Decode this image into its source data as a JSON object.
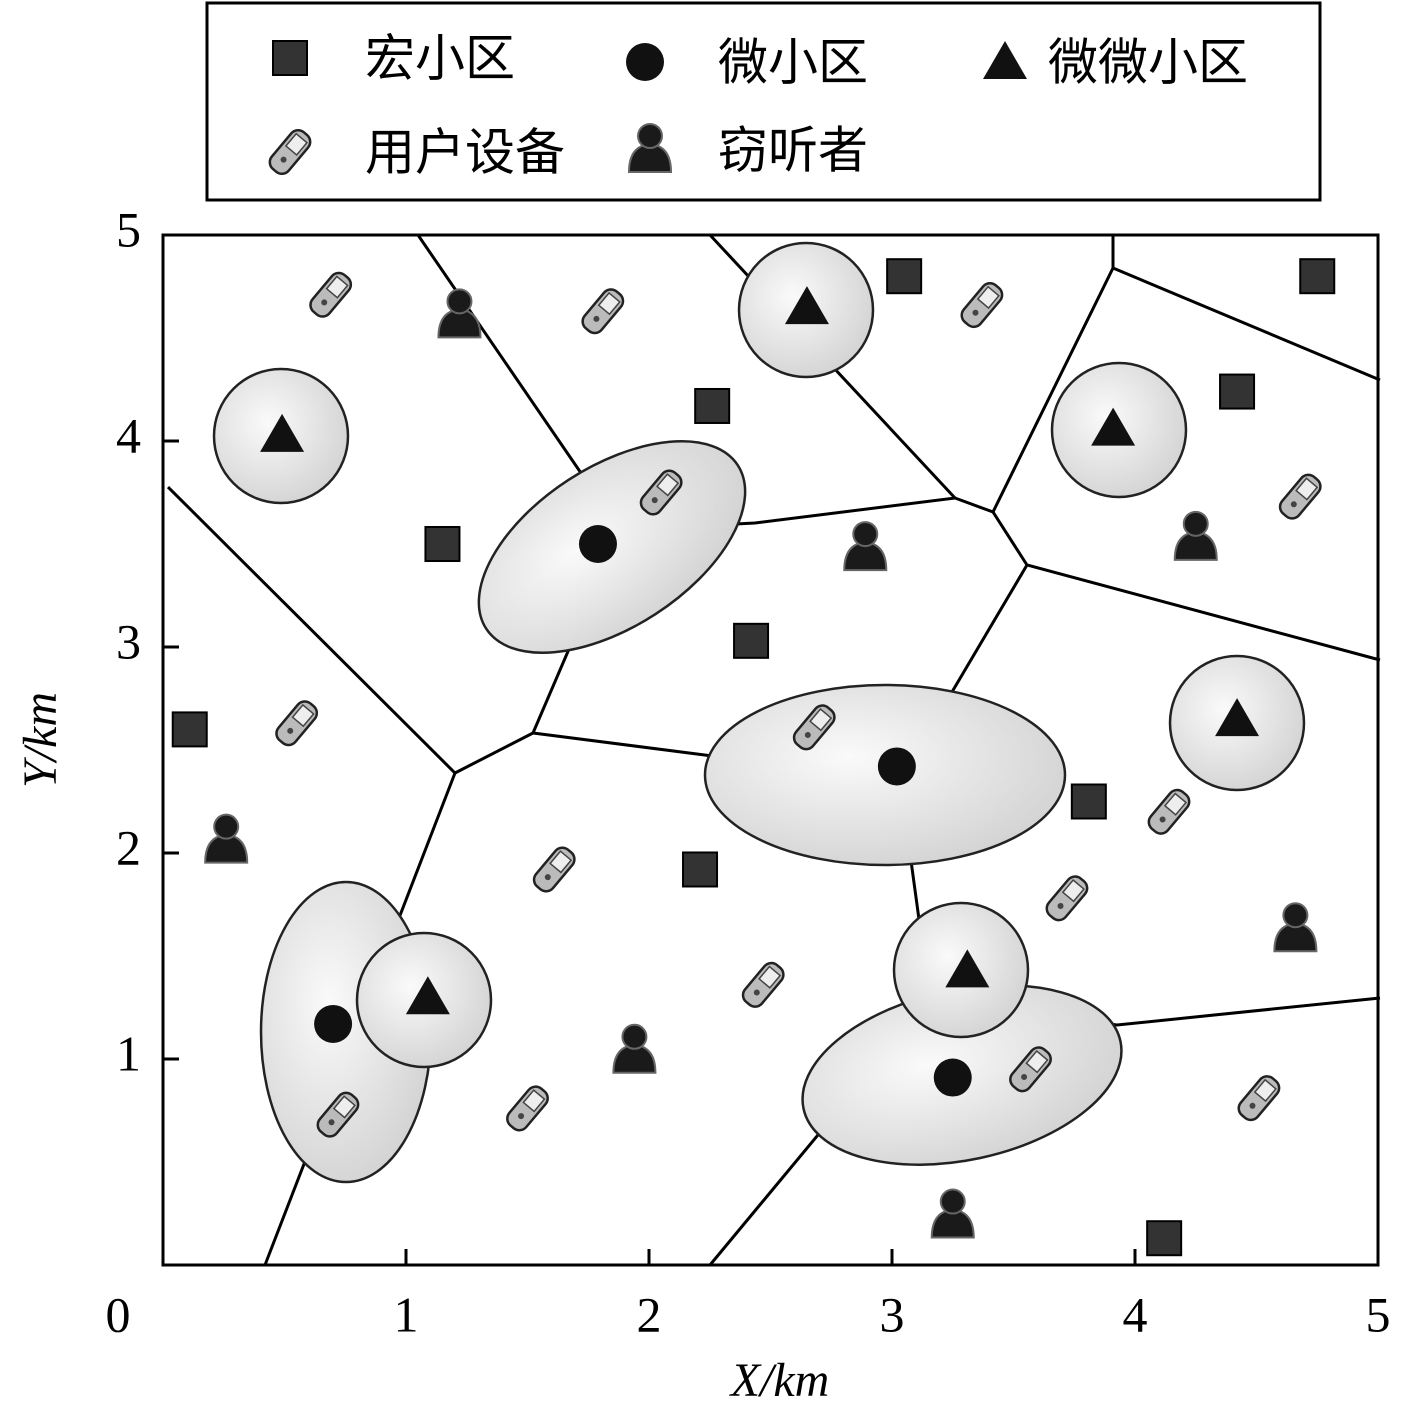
{
  "chart_data": {
    "type": "scatter",
    "x_label": "X/km",
    "y_label": "Y/km",
    "xlim": [
      0,
      5
    ],
    "ylim": [
      0,
      5
    ],
    "xticks": [
      0,
      1,
      2,
      3,
      4,
      5
    ],
    "yticks": [
      1,
      2,
      3,
      4,
      5
    ],
    "series": [
      {
        "name": "宏小区",
        "marker": "square",
        "color": "#333333",
        "x": [
          3.05,
          4.75,
          2.26,
          4.42,
          1.15,
          2.42,
          0.11,
          3.81,
          2.21,
          4.12
        ],
        "values": [
          4.8,
          4.8,
          4.17,
          4.24,
          3.5,
          3.03,
          2.6,
          2.25,
          1.92,
          0.13
        ]
      },
      {
        "name": "微小区",
        "marker": "circle",
        "color": "#111111",
        "x": [
          1.79,
          3.02,
          0.7,
          3.25
        ],
        "values": [
          3.5,
          2.42,
          1.17,
          0.91
        ]
      },
      {
        "name": "微微小区",
        "marker": "triangle",
        "color": "#111111",
        "x": [
          2.65,
          0.49,
          3.91,
          4.42,
          3.31,
          1.09
        ],
        "values": [
          4.65,
          4.03,
          4.06,
          2.65,
          1.43,
          1.3
        ]
      },
      {
        "name": "用户设备",
        "marker": "phone",
        "color": "#888888",
        "x": [
          0.69,
          1.81,
          3.37,
          2.05,
          4.68,
          0.55,
          2.68,
          4.14,
          1.61,
          3.72,
          2.47,
          3.57,
          1.5,
          0.72,
          4.51
        ],
        "values": [
          4.71,
          4.63,
          4.66,
          3.75,
          3.73,
          2.63,
          2.61,
          2.2,
          1.92,
          1.78,
          1.36,
          0.95,
          0.76,
          0.73,
          0.81
        ]
      },
      {
        "name": "窃听者",
        "marker": "person",
        "color": "#1a1a1a",
        "x": [
          1.22,
          2.89,
          4.25,
          0.26,
          4.66,
          1.94,
          3.25
        ],
        "values": [
          4.61,
          3.48,
          3.53,
          2.06,
          1.63,
          1.04,
          0.24
        ]
      }
    ]
  }
}
